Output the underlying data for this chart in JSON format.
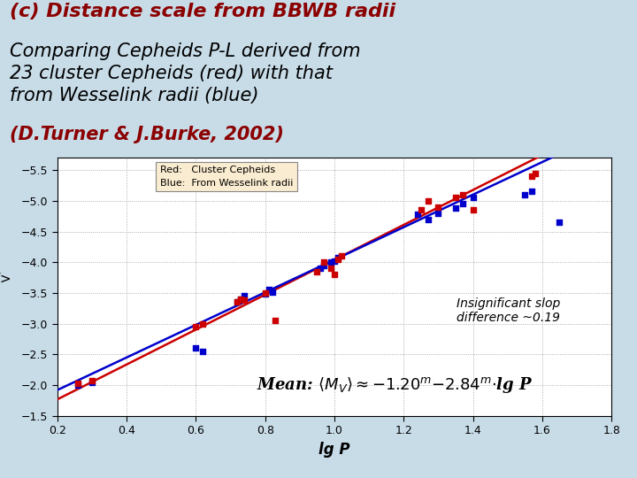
{
  "title_line1": "(c) Distance scale from BBWB radii",
  "title_line2": "Comparing Cepheids P-L derived from\n23 cluster Cepheids (red) with that\nfrom Wesselink radii (blue)",
  "title_line3": "(D.Turner & J.Burke, 2002)",
  "xlabel": "lg P",
  "ylabel": "<M_V>",
  "xlim": [
    0.2,
    1.8
  ],
  "ylim": [
    -1.5,
    -5.7
  ],
  "bg_color": "#c8dce8",
  "bg_plot": "#ffffff",
  "red_color": "#cc0000",
  "blue_color": "#0000cc",
  "red_slope": 2.84,
  "red_intercept": 1.2,
  "blue_slope": 2.65,
  "blue_intercept": 1.39,
  "red_points_x": [
    0.26,
    0.3,
    0.6,
    0.62,
    0.72,
    0.73,
    0.74,
    0.8,
    0.83,
    0.95,
    0.97,
    0.99,
    1.0,
    1.01,
    1.02,
    1.25,
    1.27,
    1.3,
    1.35,
    1.37,
    1.4,
    1.57,
    1.58
  ],
  "red_points_y": [
    -2.03,
    -2.08,
    -2.95,
    -3.0,
    -3.35,
    -3.4,
    -3.38,
    -3.5,
    -3.05,
    -3.85,
    -4.0,
    -3.9,
    -3.8,
    -4.05,
    -4.1,
    -4.85,
    -5.0,
    -4.9,
    -5.05,
    -5.1,
    -4.85,
    -5.4,
    -5.45
  ],
  "blue_points_x": [
    0.26,
    0.3,
    0.6,
    0.62,
    0.72,
    0.73,
    0.74,
    0.8,
    0.81,
    0.82,
    0.96,
    0.97,
    0.99,
    1.0,
    1.01,
    1.24,
    1.27,
    1.3,
    1.35,
    1.37,
    1.4,
    1.55,
    1.57,
    1.65
  ],
  "blue_points_y": [
    -2.0,
    -2.05,
    -2.6,
    -2.55,
    -3.35,
    -3.4,
    -3.45,
    -3.48,
    -3.55,
    -3.52,
    -3.9,
    -3.95,
    -4.0,
    -4.02,
    -4.08,
    -4.78,
    -4.7,
    -4.8,
    -4.88,
    -4.95,
    -5.05,
    -5.1,
    -5.15,
    -4.65
  ],
  "legend_box_color": "#faecd0",
  "annotation_text": "Insignificant slop\ndifference ~0.19",
  "grid_color": "#999999",
  "yticks": [
    -5.5,
    -5.0,
    -4.5,
    -4.0,
    -3.5,
    -3.0,
    -2.5,
    -2.0,
    -1.5
  ],
  "xticks": [
    0.2,
    0.4,
    0.6,
    0.8,
    1.0,
    1.2,
    1.4,
    1.6,
    1.8
  ]
}
